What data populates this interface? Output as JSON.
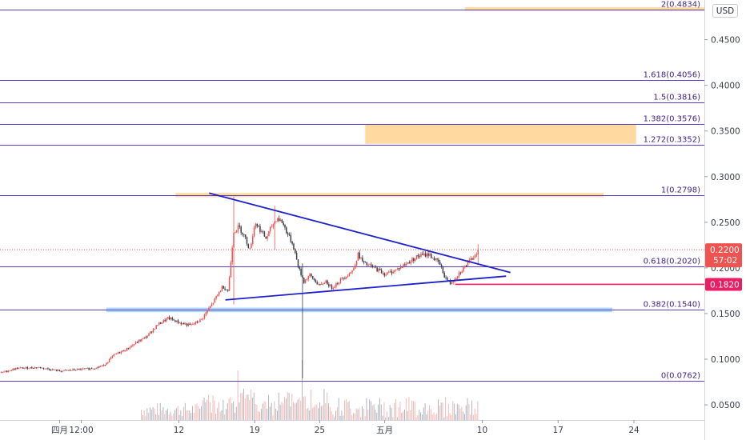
{
  "currency": "USD",
  "chart_data": {
    "type": "candlestick",
    "y_axis": {
      "ticks": [
        "0.4500",
        "0.4000",
        "0.3500",
        "0.3000",
        "0.2500",
        "0.2000",
        "0.1500",
        "0.1000",
        "0.0500"
      ],
      "tick_values": [
        0.45,
        0.4,
        0.35,
        0.3,
        0.25,
        0.2,
        0.15,
        0.1,
        0.05
      ],
      "range": [
        0.0115,
        0.4935
      ],
      "position": "right"
    },
    "x_axis": {
      "ticks": [
        "四月",
        "12:00",
        "12",
        "19",
        "25",
        "五月",
        "10",
        "17",
        "24"
      ],
      "tick_days": [
        1,
        3,
        12,
        19,
        25,
        31,
        40,
        47,
        54
      ],
      "range_days": [
        -4.5,
        60.5
      ]
    },
    "fib_levels": [
      {
        "label": "2(0.4834)",
        "value": 0.4834
      },
      {
        "label": "1.618(0.4056)",
        "value": 0.4056
      },
      {
        "label": "1.5(0.3816)",
        "value": 0.3816
      },
      {
        "label": "1.382(0.3576)",
        "value": 0.3576
      },
      {
        "label": "1.272(0.3352)",
        "value": 0.3352
      },
      {
        "label": "1(0.2798)",
        "value": 0.2798
      },
      {
        "label": "0.618(0.2020)",
        "value": 0.202
      },
      {
        "label": "0.382(0.1540)",
        "value": 0.154
      },
      {
        "label": "0(0.0762)",
        "value": 0.0762
      }
    ],
    "zones": [
      {
        "color": "#ffcc80",
        "y": [
          0.4815,
          0.4855
        ],
        "x_days": [
          38.4,
          60.5
        ]
      },
      {
        "color": "#ffcc80",
        "y": [
          0.336,
          0.357
        ],
        "x_days": [
          29.2,
          54.2
        ]
      },
      {
        "color": "#ffcc80",
        "y": [
          0.2775,
          0.282
        ],
        "x_days": [
          11.7,
          51.2
        ]
      },
      {
        "color": "#90caf9",
        "y": [
          0.1515,
          0.1565
        ],
        "x_days": [
          5.3,
          52.0
        ]
      }
    ],
    "trendlines": [
      {
        "from": [
          14.8,
          0.282
        ],
        "to": [
          42.6,
          0.195
        ],
        "color": "#1e22c8"
      },
      {
        "from": [
          16.3,
          0.165
        ],
        "to": [
          42.2,
          0.191
        ],
        "color": "#1e22c8"
      }
    ],
    "support_level": {
      "label": "0.1820",
      "value": 0.182,
      "x_days": [
        37.5,
        60.5
      ],
      "color": "#e91e63"
    },
    "last_price": {
      "label": "0.2200",
      "value": 0.22,
      "countdown": "57:02",
      "color": "#ef5350"
    },
    "price_path": [
      [
        -4.5,
        0.085
      ],
      [
        -3,
        0.09
      ],
      [
        -1,
        0.091
      ],
      [
        1,
        0.087
      ],
      [
        3,
        0.089
      ],
      [
        4,
        0.09
      ],
      [
        5,
        0.093
      ],
      [
        6,
        0.105
      ],
      [
        7,
        0.11
      ],
      [
        8,
        0.118
      ],
      [
        9,
        0.125
      ],
      [
        10,
        0.138
      ],
      [
        11,
        0.145
      ],
      [
        12,
        0.14
      ],
      [
        13,
        0.137
      ],
      [
        14,
        0.143
      ],
      [
        15,
        0.16
      ],
      [
        16,
        0.18
      ],
      [
        16.5,
        0.175
      ],
      [
        17,
        0.24
      ],
      [
        17.5,
        0.245
      ],
      [
        18,
        0.235
      ],
      [
        18.5,
        0.22
      ],
      [
        19,
        0.25
      ],
      [
        20,
        0.232
      ],
      [
        20.5,
        0.245
      ],
      [
        21,
        0.255
      ],
      [
        21.5,
        0.25
      ],
      [
        22,
        0.237
      ],
      [
        22.5,
        0.225
      ],
      [
        23,
        0.2
      ],
      [
        23.5,
        0.185
      ],
      [
        24,
        0.192
      ],
      [
        25,
        0.18
      ],
      [
        25.5,
        0.186
      ],
      [
        26,
        0.178
      ],
      [
        27,
        0.188
      ],
      [
        28,
        0.197
      ],
      [
        28.5,
        0.215
      ],
      [
        29,
        0.205
      ],
      [
        30,
        0.2
      ],
      [
        31,
        0.193
      ],
      [
        32,
        0.198
      ],
      [
        33,
        0.205
      ],
      [
        34,
        0.213
      ],
      [
        35,
        0.215
      ],
      [
        36,
        0.205
      ],
      [
        36.5,
        0.19
      ],
      [
        37,
        0.183
      ],
      [
        37.5,
        0.19
      ],
      [
        38,
        0.197
      ],
      [
        39,
        0.21
      ],
      [
        39.6,
        0.22
      ]
    ],
    "wicks": [
      {
        "day": 23.3,
        "high": 0.205,
        "low": 0.079
      },
      {
        "day": 17.0,
        "high": 0.278,
        "low": 0.16
      },
      {
        "day": 20.8,
        "high": 0.268,
        "low": 0.22
      },
      {
        "day": 39.6,
        "high": 0.226,
        "low": 0.204
      }
    ],
    "volume_spikes": [
      {
        "day": 17.4,
        "height": 62
      },
      {
        "day": 23.3,
        "height": 75
      },
      {
        "day": 18.6,
        "height": 38
      },
      {
        "day": 22.0,
        "height": 35
      }
    ]
  }
}
